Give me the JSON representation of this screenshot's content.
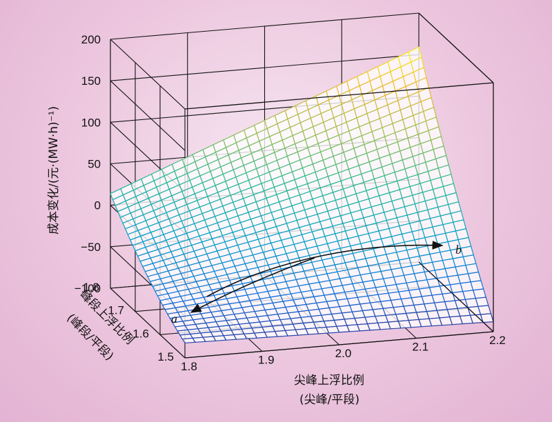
{
  "chart_data": {
    "type": "surface",
    "title": "",
    "xlabel": [
      "尖峰上浮比例",
      "(尖峰/平段)"
    ],
    "ylabel": [
      "峰段上浮比例",
      "(峰段/平段)"
    ],
    "zlabel": "成本变化/(元·(MW·h)⁻¹)",
    "xlim": [
      1.8,
      2.2
    ],
    "ylim": [
      1.5,
      1.8
    ],
    "zlim": [
      -100,
      200
    ],
    "x_ticks": [
      "1.8",
      "1.9",
      "2.0",
      "2.1",
      "2.2"
    ],
    "y_ticks": [
      "1.5",
      "1.6",
      "1.7",
      "1.8"
    ],
    "z_ticks": [
      "200",
      "150",
      "100",
      "50",
      "0",
      "−50",
      "−100"
    ],
    "grid": true,
    "colormap": "parula",
    "surface_corners": [
      {
        "x": 1.8,
        "y": 1.8,
        "z": 14
      },
      {
        "x": 1.8,
        "y": 1.5,
        "z": -82
      },
      {
        "x": 2.2,
        "y": 1.8,
        "z": 159
      },
      {
        "x": 2.2,
        "y": 1.5,
        "z": -88
      }
    ],
    "surface_curvature": 40,
    "annotations": [
      {
        "text": "a",
        "direction": "arrow toward lower-left"
      },
      {
        "text": "b",
        "direction": "arrow toward right"
      }
    ]
  }
}
